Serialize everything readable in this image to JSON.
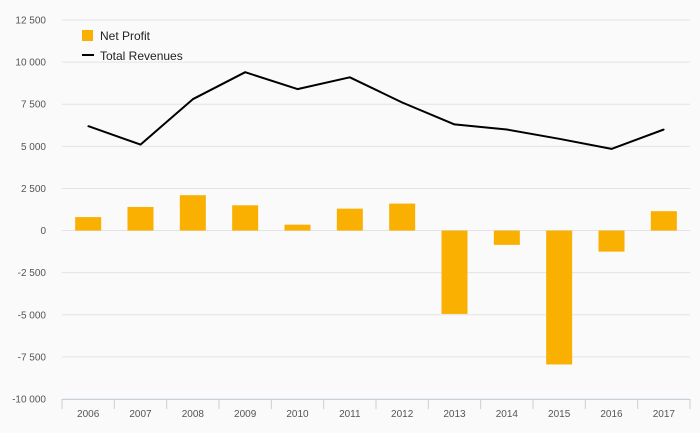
{
  "chart_data": {
    "type": "bar+line",
    "categories": [
      "2006",
      "2007",
      "2008",
      "2009",
      "2010",
      "2011",
      "2012",
      "2013",
      "2014",
      "2015",
      "2016",
      "2017"
    ],
    "series": [
      {
        "name": "Net Profit",
        "type": "bar",
        "color": "#f9b000",
        "values": [
          800,
          1400,
          2100,
          1500,
          350,
          1300,
          1600,
          -4950,
          -850,
          -7950,
          -1250,
          1150
        ]
      },
      {
        "name": "Total Revenues",
        "type": "line",
        "color": "#000000",
        "values": [
          6200,
          5100,
          7800,
          9400,
          8400,
          9100,
          7600,
          6300,
          6000,
          5450,
          4850,
          6000
        ]
      }
    ],
    "y_ticks": [
      12500,
      10000,
      7500,
      5000,
      2500,
      0,
      -2500,
      -5000,
      -7500,
      -10000
    ],
    "y_tick_labels": [
      "12 500",
      "10 000",
      "7 500",
      "5 000",
      "2 500",
      "0",
      "-2 500",
      "-5 000",
      "-7 500",
      "-10 000"
    ],
    "ylim": [
      -10000,
      12500
    ],
    "legend": [
      {
        "label": "Net Profit",
        "kind": "bar",
        "color": "#f9b000"
      },
      {
        "label": "Total Revenues",
        "kind": "line",
        "color": "#000000"
      }
    ],
    "legend_position": "top-left",
    "grid": true,
    "title": "",
    "xlabel": "",
    "ylabel": ""
  }
}
